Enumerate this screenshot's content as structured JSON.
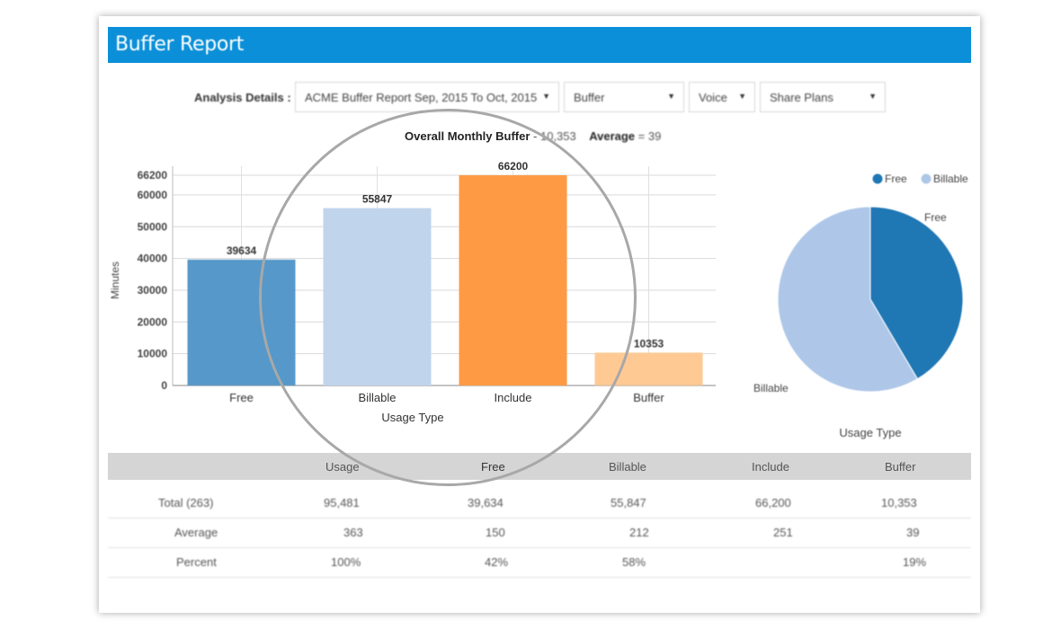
{
  "app": {
    "title": "Buffer Report"
  },
  "toolbar": {
    "label": "Analysis Details :",
    "report_select": "ACME Buffer Report Sep, 2015 To Oct, 2015",
    "type_select": "Buffer",
    "service_select": "Voice",
    "plan_select": "Share Plans"
  },
  "summary": {
    "overall_label": "Overall Monthly Buffer",
    "overall_sep": " - ",
    "overall_value": "10,353",
    "average_label": "Average",
    "average_sep": " = ",
    "average_value": "39"
  },
  "chart_data": [
    {
      "type": "bar",
      "categories": [
        "Free",
        "Billable",
        "Include",
        "Buffer"
      ],
      "values": [
        39634,
        55847,
        66200,
        10353
      ],
      "data_labels": [
        "39634",
        "55847",
        "66200",
        "10353"
      ],
      "colors": [
        "#5598c9",
        "#c0d4ec",
        "#ff9a44",
        "#ffc994"
      ],
      "xlabel": "Usage Type",
      "ylabel": "Minutes",
      "ylim": [
        0,
        66200
      ],
      "yticks": [
        0,
        10000,
        20000,
        30000,
        40000,
        50000,
        60000,
        66200
      ],
      "ytick_labels": [
        "0",
        "10000",
        "20000",
        "30000",
        "40000",
        "50000",
        "60000",
        "66200"
      ],
      "grid": true
    },
    {
      "type": "pie",
      "labels": [
        "Free",
        "Billable"
      ],
      "values": [
        39634,
        55847
      ],
      "colors": [
        "#1f77b4",
        "#aec7e8"
      ],
      "legend": [
        "Free",
        "Billable"
      ],
      "legend_position": "top-right",
      "xlabel": "Usage Type"
    }
  ],
  "table": {
    "headers": [
      "Usage",
      "Free",
      "Billable",
      "Include",
      "Buffer"
    ],
    "rows": [
      {
        "label": "Total (263)",
        "values": [
          "95,481",
          "39,634",
          "55,847",
          "66,200",
          "10,353"
        ]
      },
      {
        "label": "Average",
        "values": [
          "363",
          "150",
          "212",
          "251",
          "39"
        ]
      },
      {
        "label": "Percent",
        "values": [
          "100%",
          "42%",
          "58%",
          "",
          "19%"
        ]
      }
    ]
  }
}
